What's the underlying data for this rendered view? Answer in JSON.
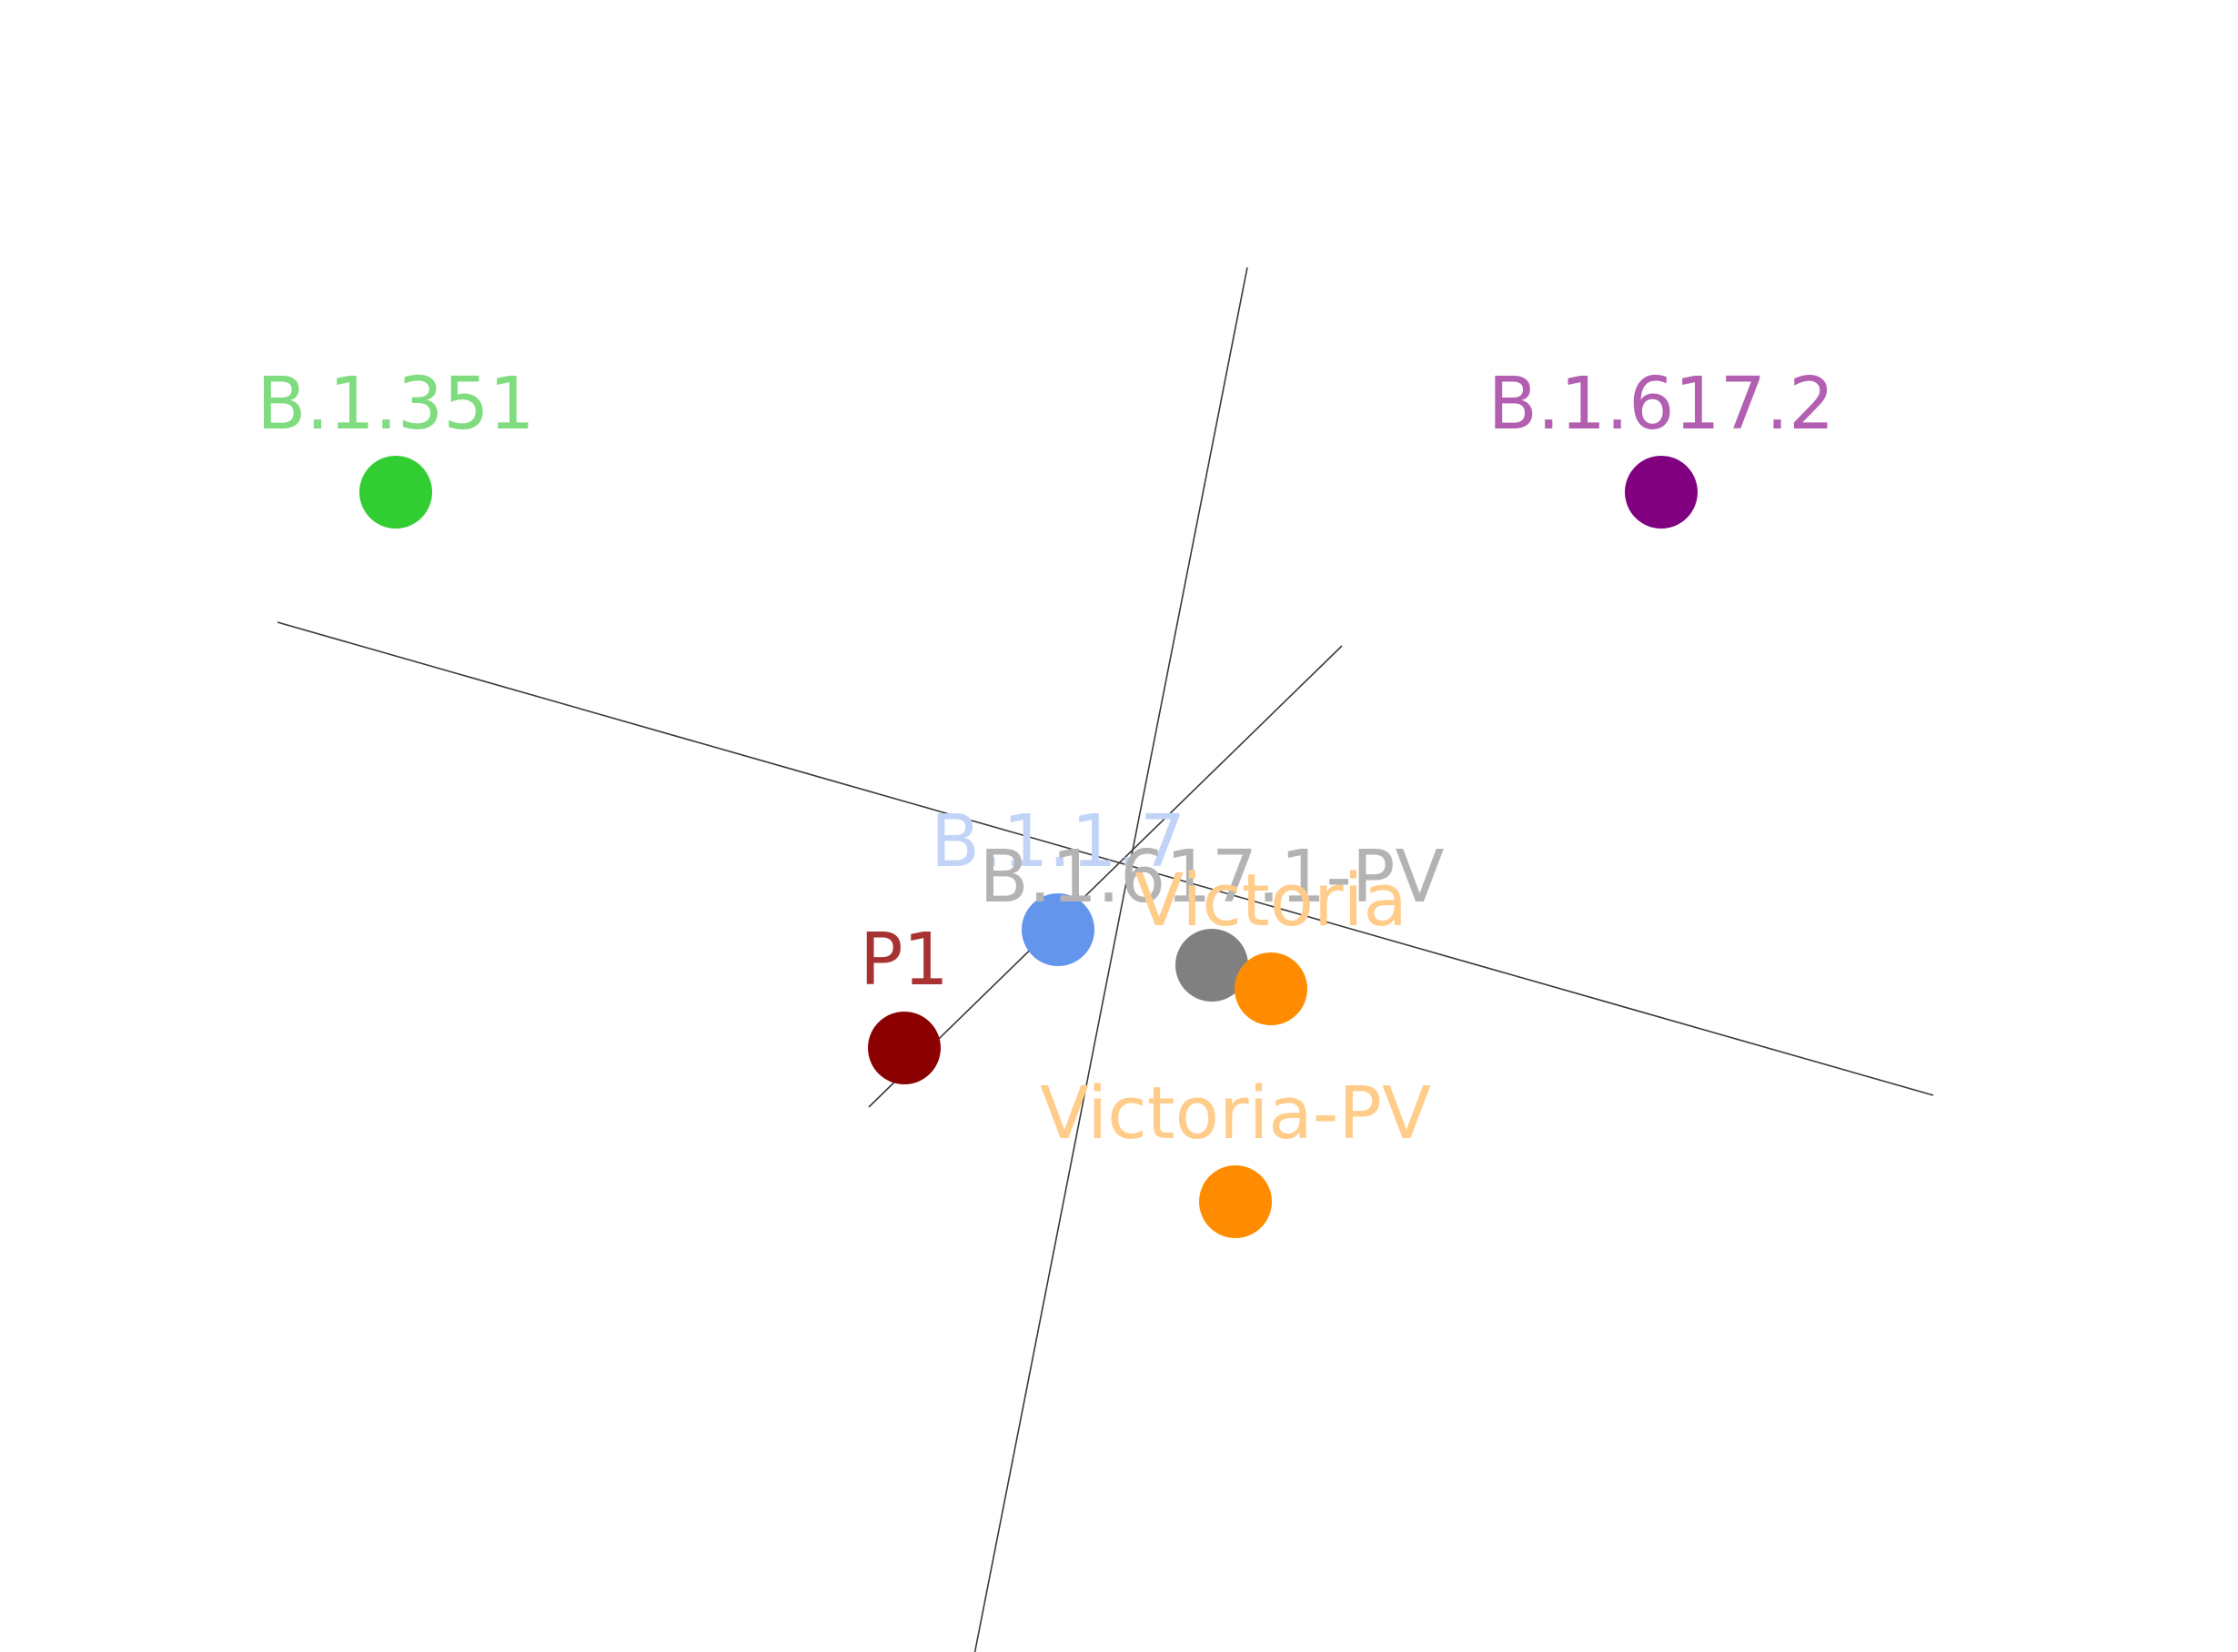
{
  "chart_data": {
    "type": "scatter",
    "title": "",
    "xlabel": "",
    "ylabel": "",
    "grid": false,
    "legend": "none",
    "xlim": [
      -7,
      7
    ],
    "ylim": [
      -9,
      5
    ],
    "axes": [
      {
        "from": [
          -7.0,
          1.7
        ],
        "to": [
          7.0,
          -2.3
        ]
      },
      {
        "from": [
          1.2,
          4.7
        ],
        "to": [
          -1.2,
          -7.5
        ]
      },
      {
        "from": [
          -2.0,
          -2.4
        ],
        "to": [
          2.0,
          1.5
        ]
      }
    ],
    "points": [
      {
        "label": "B.1.351",
        "x": -6.0,
        "y": 2.8,
        "color": "#32cd32",
        "label_color": "#7fdc7f"
      },
      {
        "label": "B.1.617.2",
        "x": 4.7,
        "y": 2.8,
        "color": "#800080",
        "label_color": "#b25fb2"
      },
      {
        "label": "B.1.1.7",
        "x": -0.4,
        "y": -0.9,
        "color": "#6495ed",
        "label_color": "#c1d4f7"
      },
      {
        "label": "B.1.617.1-PV",
        "x": 0.9,
        "y": -1.2,
        "color": "#808080",
        "label_color": "#b3b3b3"
      },
      {
        "label": "Victoria",
        "x": 1.4,
        "y": -1.4,
        "color": "#ff8c00",
        "label_color": "#ffcc8a"
      },
      {
        "label": "P1",
        "x": -1.7,
        "y": -1.9,
        "color": "#8b0000",
        "label_color": "#a83232"
      },
      {
        "label": "Victoria-PV",
        "x": 1.1,
        "y": -3.2,
        "color": "#ff8c00",
        "label_color": "#ffcc8a"
      }
    ]
  }
}
